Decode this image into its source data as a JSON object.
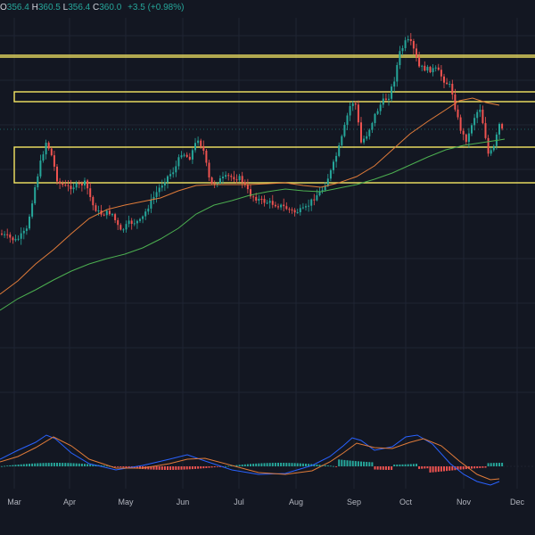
{
  "ohlc": {
    "open_key": "O",
    "open": "356.4",
    "high_key": "H",
    "high": "360.5",
    "low_key": "L",
    "low": "356.4",
    "close_key": "C",
    "close": "360.0",
    "change": "+3.5 (+0.98%)"
  },
  "months": [
    "Mar",
    "Apr",
    "May",
    "Jun",
    "Jul",
    "Aug",
    "Sep",
    "Oct",
    "Nov",
    "Dec"
  ],
  "colors": {
    "background": "#131722",
    "grid": "#1f2433",
    "up": "#26a69a",
    "down": "#ef5350",
    "ema_fast": "#e07b39",
    "ema_slow": "#4caf50",
    "zone": "#f5e663",
    "macd_line": "#2962ff",
    "signal_line": "#e07b39"
  },
  "chart_data": {
    "type": "candlestick",
    "x_axis": [
      "Mar",
      "Apr",
      "May",
      "Jun",
      "Jul",
      "Aug",
      "Sep",
      "Oct",
      "Nov",
      "Dec"
    ],
    "horizontal_zones": 3,
    "moving_averages": [
      "ema-fast",
      "ema-slow"
    ],
    "indicator": "macd"
  }
}
